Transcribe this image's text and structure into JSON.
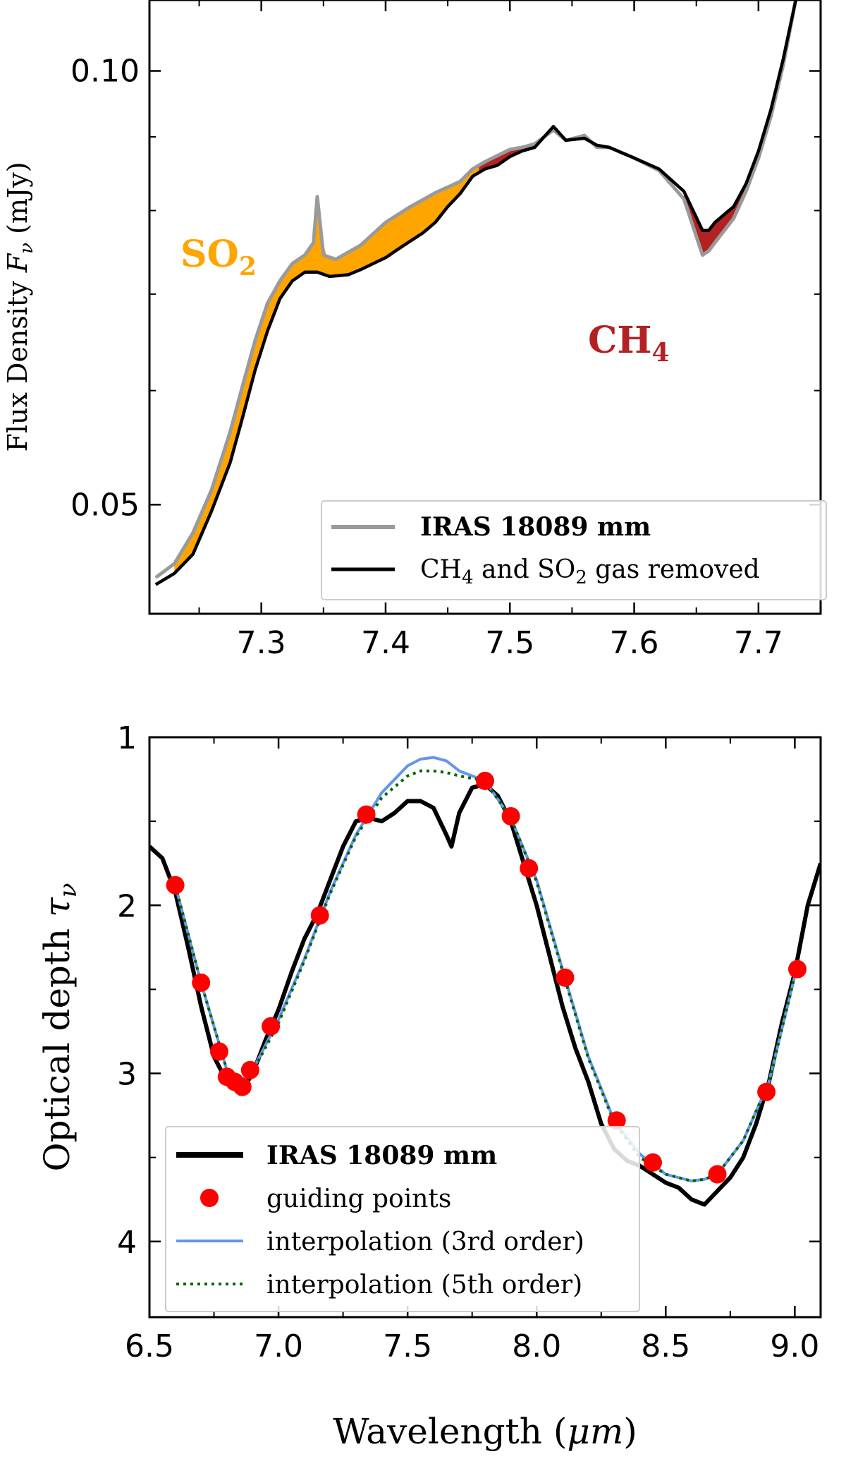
{
  "colors": {
    "gray": "#9a9a9a",
    "black": "#000000",
    "so2": "#ffa500",
    "ch4": "#b22222",
    "red": "#ff0000",
    "blue": "#6495ed",
    "green": "#006400"
  },
  "chart_data": [
    {
      "type": "line",
      "title": "",
      "xlabel": "",
      "ylabel": "Flux Density F_ν (mJy)",
      "ylabel_parts": {
        "main": "Flux Density ",
        "var": "F",
        "sub": "ν",
        "unit": " (mJy)"
      },
      "yscale": "log",
      "xlim": [
        7.21,
        7.75
      ],
      "ylim": [
        0.042,
        0.112
      ],
      "xticks": [
        7.3,
        7.4,
        7.5,
        7.6,
        7.7
      ],
      "xtick_labels": [
        "7.3",
        "7.4",
        "7.5",
        "7.6",
        "7.7"
      ],
      "yticks": [
        0.05,
        0.1
      ],
      "ytick_labels": [
        "0.05",
        "0.10"
      ],
      "annotations": [
        {
          "text": "SO",
          "sub": "2",
          "x": 7.245,
          "y": 0.079,
          "color": "#ffa500"
        },
        {
          "text": "CH",
          "sub": "4",
          "x": 7.635,
          "y": 0.0695,
          "color": "#b22222"
        }
      ],
      "legend": {
        "position": "lower-right",
        "entries": [
          {
            "label": "IRAS 18089 mm",
            "style": "gray-line",
            "bold": true
          },
          {
            "label_parts": [
              "CH",
              "4",
              " and SO",
              "2",
              " gas removed"
            ],
            "style": "black-line",
            "bold": false
          }
        ]
      },
      "series": [
        {
          "name": "IRAS 18089 mm",
          "color": "#9a9a9a",
          "x": [
            7.215,
            7.23,
            7.245,
            7.26,
            7.275,
            7.285,
            7.295,
            7.305,
            7.315,
            7.325,
            7.335,
            7.342,
            7.345,
            7.35,
            7.36,
            7.38,
            7.4,
            7.42,
            7.44,
            7.46,
            7.47,
            7.48,
            7.5,
            7.51,
            7.52,
            7.535,
            7.545,
            7.56,
            7.57,
            7.58,
            7.6,
            7.62,
            7.64,
            7.655,
            7.66,
            7.665,
            7.68,
            7.69,
            7.7,
            7.71,
            7.72,
            7.73
          ],
          "y": [
            0.0445,
            0.0455,
            0.0478,
            0.0512,
            0.0562,
            0.0605,
            0.065,
            0.069,
            0.0715,
            0.0735,
            0.0745,
            0.076,
            0.0818,
            0.0745,
            0.074,
            0.0757,
            0.0785,
            0.0805,
            0.0823,
            0.0838,
            0.0855,
            0.0865,
            0.0882,
            0.0885,
            0.089,
            0.091,
            0.0895,
            0.0902,
            0.0885,
            0.0885,
            0.087,
            0.0853,
            0.0815,
            0.0745,
            0.075,
            0.076,
            0.079,
            0.0825,
            0.087,
            0.093,
            0.101,
            0.112
          ]
        },
        {
          "name": "CH4 and SO2 gas removed",
          "color": "#000000",
          "x": [
            7.215,
            7.23,
            7.245,
            7.26,
            7.275,
            7.285,
            7.295,
            7.305,
            7.315,
            7.325,
            7.335,
            7.345,
            7.355,
            7.37,
            7.38,
            7.39,
            7.4,
            7.41,
            7.42,
            7.43,
            7.44,
            7.45,
            7.46,
            7.47,
            7.48,
            7.49,
            7.5,
            7.51,
            7.52,
            7.535,
            7.545,
            7.56,
            7.57,
            7.58,
            7.6,
            7.62,
            7.64,
            7.655,
            7.66,
            7.665,
            7.68,
            7.69,
            7.7,
            7.71,
            7.72,
            7.73
          ],
          "y": [
            0.044,
            0.0448,
            0.0462,
            0.0495,
            0.0535,
            0.0575,
            0.062,
            0.066,
            0.0695,
            0.0715,
            0.0725,
            0.0725,
            0.072,
            0.0722,
            0.0728,
            0.0735,
            0.0742,
            0.0752,
            0.0762,
            0.0772,
            0.0785,
            0.0805,
            0.0822,
            0.0845,
            0.0855,
            0.086,
            0.0872,
            0.088,
            0.0885,
            0.0915,
            0.0895,
            0.0898,
            0.0888,
            0.0885,
            0.087,
            0.0855,
            0.0825,
            0.0775,
            0.0775,
            0.0785,
            0.0805,
            0.0835,
            0.088,
            0.094,
            0.102,
            0.112
          ]
        }
      ]
    },
    {
      "type": "line",
      "title": "",
      "xlabel": "Wavelength (μm)",
      "xlabel_parts": {
        "main": "Wavelength (",
        "var": "μm",
        "end": ")"
      },
      "ylabel": "Optical depth τ_ν",
      "ylabel_parts": {
        "main": "Optical depth ",
        "var": "τ",
        "sub": "ν"
      },
      "y_inverted": true,
      "xlim": [
        6.5,
        9.1
      ],
      "ylim": [
        4.45,
        1.0
      ],
      "xticks": [
        6.5,
        7.0,
        7.5,
        8.0,
        8.5,
        9.0
      ],
      "xtick_labels": [
        "6.5",
        "7.0",
        "7.5",
        "8.0",
        "8.5",
        "9.0"
      ],
      "yticks": [
        1,
        2,
        3,
        4
      ],
      "ytick_labels": [
        "1",
        "2",
        "3",
        "4"
      ],
      "legend": {
        "position": "lower-left",
        "entries": [
          {
            "label": "IRAS 18089 mm",
            "style": "black-thick-line",
            "bold": true
          },
          {
            "label": "guiding points",
            "style": "red-dot",
            "bold": false
          },
          {
            "label": "interpolation (3rd order)",
            "style": "blue-line",
            "bold": false
          },
          {
            "label": "interpolation (5th order)",
            "style": "green-dotted",
            "bold": false
          }
        ]
      },
      "series": [
        {
          "name": "IRAS 18089 mm",
          "color": "#000000",
          "x": [
            6.5,
            6.55,
            6.6,
            6.65,
            6.7,
            6.75,
            6.8,
            6.85,
            6.9,
            6.95,
            7.0,
            7.05,
            7.1,
            7.15,
            7.2,
            7.25,
            7.3,
            7.35,
            7.4,
            7.45,
            7.5,
            7.55,
            7.6,
            7.65,
            7.67,
            7.7,
            7.75,
            7.8,
            7.85,
            7.9,
            7.95,
            8.0,
            8.05,
            8.1,
            8.15,
            8.2,
            8.25,
            8.3,
            8.35,
            8.4,
            8.45,
            8.5,
            8.55,
            8.6,
            8.65,
            8.7,
            8.75,
            8.8,
            8.85,
            8.9,
            8.95,
            9.0,
            9.05,
            9.1
          ],
          "y": [
            1.65,
            1.72,
            1.92,
            2.25,
            2.6,
            2.9,
            3.05,
            3.12,
            3.0,
            2.8,
            2.62,
            2.4,
            2.2,
            2.05,
            1.85,
            1.65,
            1.5,
            1.48,
            1.5,
            1.45,
            1.38,
            1.38,
            1.42,
            1.58,
            1.65,
            1.45,
            1.3,
            1.28,
            1.35,
            1.5,
            1.75,
            2.0,
            2.3,
            2.6,
            2.85,
            3.05,
            3.3,
            3.45,
            3.52,
            3.55,
            3.6,
            3.65,
            3.68,
            3.75,
            3.78,
            3.7,
            3.62,
            3.5,
            3.3,
            3.05,
            2.7,
            2.4,
            2.0,
            1.75
          ]
        },
        {
          "name": "guiding points",
          "color": "#ff0000",
          "x": [
            6.6,
            6.7,
            6.77,
            6.8,
            6.83,
            6.86,
            6.89,
            6.97,
            7.16,
            7.34,
            7.8,
            7.9,
            7.97,
            8.11,
            8.31,
            8.45,
            8.7,
            8.89,
            9.01
          ],
          "y": [
            1.88,
            2.46,
            2.87,
            3.02,
            3.05,
            3.08,
            2.98,
            2.72,
            2.06,
            1.46,
            1.26,
            1.47,
            1.78,
            2.43,
            3.28,
            3.53,
            3.6,
            3.11,
            2.38
          ]
        },
        {
          "name": "interpolation (3rd order)",
          "color": "#6495ed",
          "x": [
            6.6,
            6.7,
            6.8,
            6.85,
            6.9,
            7.0,
            7.1,
            7.2,
            7.3,
            7.4,
            7.5,
            7.55,
            7.6,
            7.65,
            7.7,
            7.8,
            7.9,
            8.0,
            8.1,
            8.2,
            8.3,
            8.4,
            8.5,
            8.6,
            8.65,
            8.7,
            8.8,
            8.9,
            9.0,
            9.02
          ],
          "y": [
            1.88,
            2.46,
            2.98,
            3.05,
            2.98,
            2.68,
            2.32,
            1.92,
            1.58,
            1.33,
            1.17,
            1.13,
            1.12,
            1.14,
            1.2,
            1.26,
            1.48,
            1.85,
            2.38,
            2.9,
            3.28,
            3.48,
            3.6,
            3.64,
            3.63,
            3.6,
            3.4,
            3.05,
            2.42,
            2.38
          ]
        },
        {
          "name": "interpolation (5th order)",
          "color": "#006400",
          "x": [
            6.6,
            6.7,
            6.8,
            6.85,
            6.9,
            7.0,
            7.1,
            7.2,
            7.3,
            7.4,
            7.5,
            7.55,
            7.6,
            7.65,
            7.7,
            7.8,
            7.9,
            8.0,
            8.1,
            8.2,
            8.3,
            8.4,
            8.5,
            8.6,
            8.65,
            8.7,
            8.8,
            8.9,
            9.0,
            9.02
          ],
          "y": [
            1.88,
            2.46,
            2.98,
            3.06,
            2.99,
            2.7,
            2.33,
            1.93,
            1.59,
            1.36,
            1.23,
            1.2,
            1.2,
            1.21,
            1.23,
            1.26,
            1.48,
            1.86,
            2.39,
            2.91,
            3.29,
            3.5,
            3.6,
            3.64,
            3.63,
            3.6,
            3.4,
            3.05,
            2.42,
            2.38
          ]
        }
      ]
    }
  ]
}
